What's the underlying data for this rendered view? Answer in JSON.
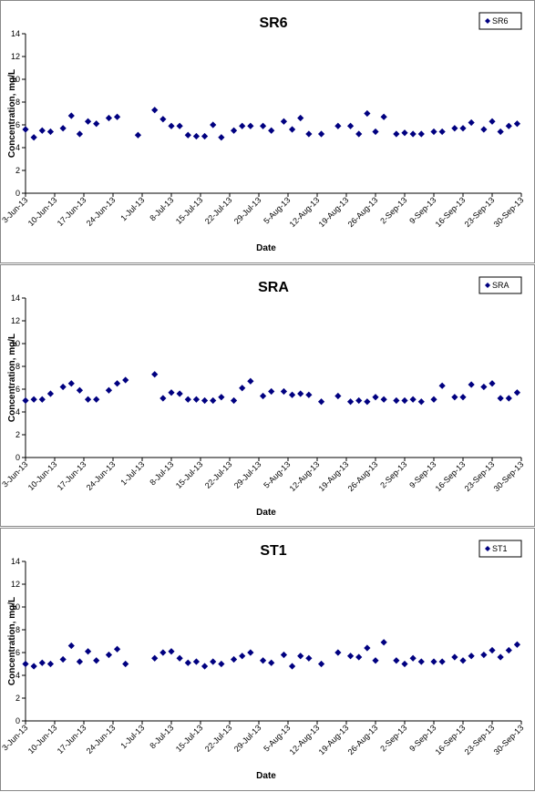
{
  "chart_data": [
    {
      "type": "scatter",
      "title": "SR6",
      "xlabel": "Date",
      "ylabel": "Concentration, mg/L",
      "legend": "upper right",
      "x": [
        "2013-06-03",
        "2013-06-05",
        "2013-06-07",
        "2013-06-09",
        "2013-06-12",
        "2013-06-14",
        "2013-06-16",
        "2013-06-18",
        "2013-06-20",
        "2013-06-23",
        "2013-06-25",
        "2013-06-30",
        "2013-07-04",
        "2013-07-06",
        "2013-07-08",
        "2013-07-10",
        "2013-07-12",
        "2013-07-14",
        "2013-07-16",
        "2013-07-18",
        "2013-07-20",
        "2013-07-23",
        "2013-07-25",
        "2013-07-27",
        "2013-07-30",
        "2013-08-01",
        "2013-08-04",
        "2013-08-06",
        "2013-08-08",
        "2013-08-10",
        "2013-08-13",
        "2013-08-17",
        "2013-08-20",
        "2013-08-22",
        "2013-08-24",
        "2013-08-26",
        "2013-08-28",
        "2013-08-31",
        "2013-09-02",
        "2013-09-04",
        "2013-09-06",
        "2013-09-09",
        "2013-09-11",
        "2013-09-14",
        "2013-09-16",
        "2013-09-18",
        "2013-09-21",
        "2013-09-23",
        "2013-09-25",
        "2013-09-27",
        "2013-09-29"
      ],
      "series": [
        {
          "name": "SR6",
          "color": "#000080",
          "values": [
            5.6,
            4.9,
            5.5,
            5.4,
            5.7,
            6.8,
            5.2,
            6.3,
            6.1,
            6.6,
            6.7,
            5.1,
            7.3,
            6.5,
            5.9,
            5.9,
            5.1,
            5.0,
            5.0,
            6.0,
            4.9,
            5.5,
            5.9,
            5.9,
            5.9,
            5.5,
            6.3,
            5.6,
            6.6,
            5.2,
            5.2,
            5.9,
            5.9,
            5.2,
            7.0,
            5.4,
            6.7,
            5.2,
            5.3,
            5.2,
            5.2,
            5.4,
            5.4,
            5.7,
            5.7,
            6.2,
            5.6,
            6.3,
            5.4,
            5.9,
            6.1
          ]
        }
      ],
      "xlim": [
        "2013-06-03",
        "2013-09-30"
      ],
      "xticks": [
        {
          "value": "2013-06-03",
          "label": "3-Jun-13"
        },
        {
          "value": "2013-06-10",
          "label": "10-Jun-13"
        },
        {
          "value": "2013-06-17",
          "label": "17-Jun-13"
        },
        {
          "value": "2013-06-24",
          "label": "24-Jun-13"
        },
        {
          "value": "2013-07-01",
          "label": "1-Jul-13"
        },
        {
          "value": "2013-07-08",
          "label": "8-Jul-13"
        },
        {
          "value": "2013-07-15",
          "label": "15-Jul-13"
        },
        {
          "value": "2013-07-22",
          "label": "22-Jul-13"
        },
        {
          "value": "2013-07-29",
          "label": "29-Jul-13"
        },
        {
          "value": "2013-08-05",
          "label": "5-Aug-13"
        },
        {
          "value": "2013-08-12",
          "label": "12-Aug-13"
        },
        {
          "value": "2013-08-19",
          "label": "19-Aug-13"
        },
        {
          "value": "2013-08-26",
          "label": "26-Aug-13"
        },
        {
          "value": "2013-09-02",
          "label": "2-Sep-13"
        },
        {
          "value": "2013-09-09",
          "label": "9-Sep-13"
        },
        {
          "value": "2013-09-16",
          "label": "16-Sep-13"
        },
        {
          "value": "2013-09-23",
          "label": "23-Sep-13"
        },
        {
          "value": "2013-09-30",
          "label": "30-Sep-13"
        }
      ],
      "ylim": [
        0,
        14
      ],
      "yticks": [
        0,
        2,
        4,
        6,
        8,
        10,
        12,
        14
      ]
    },
    {
      "type": "scatter",
      "title": "SRA",
      "xlabel": "Date",
      "ylabel": "Concentration, mg/L",
      "legend": "upper right",
      "x": [
        "2013-06-03",
        "2013-06-05",
        "2013-06-07",
        "2013-06-09",
        "2013-06-12",
        "2013-06-14",
        "2013-06-16",
        "2013-06-18",
        "2013-06-20",
        "2013-06-23",
        "2013-06-25",
        "2013-06-27",
        "2013-07-04",
        "2013-07-06",
        "2013-07-08",
        "2013-07-10",
        "2013-07-12",
        "2013-07-14",
        "2013-07-16",
        "2013-07-18",
        "2013-07-20",
        "2013-07-23",
        "2013-07-25",
        "2013-07-27",
        "2013-07-30",
        "2013-08-01",
        "2013-08-04",
        "2013-08-06",
        "2013-08-08",
        "2013-08-10",
        "2013-08-13",
        "2013-08-17",
        "2013-08-20",
        "2013-08-22",
        "2013-08-24",
        "2013-08-26",
        "2013-08-28",
        "2013-08-31",
        "2013-09-02",
        "2013-09-04",
        "2013-09-06",
        "2013-09-09",
        "2013-09-11",
        "2013-09-14",
        "2013-09-16",
        "2013-09-18",
        "2013-09-21",
        "2013-09-23",
        "2013-09-25",
        "2013-09-27",
        "2013-09-29"
      ],
      "series": [
        {
          "name": "SRA",
          "color": "#000080",
          "values": [
            5.0,
            5.1,
            5.1,
            5.6,
            6.2,
            6.5,
            5.9,
            5.1,
            5.1,
            5.9,
            6.5,
            6.8,
            7.3,
            5.2,
            5.7,
            5.6,
            5.1,
            5.1,
            5.0,
            5.0,
            5.3,
            5.0,
            6.1,
            6.7,
            5.4,
            5.8,
            5.8,
            5.5,
            5.6,
            5.5,
            4.9,
            5.4,
            4.9,
            5.0,
            4.9,
            5.3,
            5.1,
            5.0,
            5.0,
            5.1,
            4.9,
            5.1,
            6.3,
            5.3,
            5.3,
            6.4,
            6.2,
            6.5,
            5.2,
            5.2,
            5.7
          ]
        }
      ],
      "xlim": [
        "2013-06-03",
        "2013-09-30"
      ],
      "xticks": [
        {
          "value": "2013-06-03",
          "label": "3-Jun-13"
        },
        {
          "value": "2013-06-10",
          "label": "10-Jun-13"
        },
        {
          "value": "2013-06-17",
          "label": "17-Jun-13"
        },
        {
          "value": "2013-06-24",
          "label": "24-Jun-13"
        },
        {
          "value": "2013-07-01",
          "label": "1-Jul-13"
        },
        {
          "value": "2013-07-08",
          "label": "8-Jul-13"
        },
        {
          "value": "2013-07-15",
          "label": "15-Jul-13"
        },
        {
          "value": "2013-07-22",
          "label": "22-Jul-13"
        },
        {
          "value": "2013-07-29",
          "label": "29-Jul-13"
        },
        {
          "value": "2013-08-05",
          "label": "5-Aug-13"
        },
        {
          "value": "2013-08-12",
          "label": "12-Aug-13"
        },
        {
          "value": "2013-08-19",
          "label": "19-Aug-13"
        },
        {
          "value": "2013-08-26",
          "label": "26-Aug-13"
        },
        {
          "value": "2013-09-02",
          "label": "2-Sep-13"
        },
        {
          "value": "2013-09-09",
          "label": "9-Sep-13"
        },
        {
          "value": "2013-09-16",
          "label": "16-Sep-13"
        },
        {
          "value": "2013-09-23",
          "label": "23-Sep-13"
        },
        {
          "value": "2013-09-30",
          "label": "30-Sep-13"
        }
      ],
      "ylim": [
        0,
        14
      ],
      "yticks": [
        0,
        2,
        4,
        6,
        8,
        10,
        12,
        14
      ]
    },
    {
      "type": "scatter",
      "title": "ST1",
      "xlabel": "Date",
      "ylabel": "Concentration, mg/L",
      "legend": "upper right",
      "x": [
        "2013-06-03",
        "2013-06-05",
        "2013-06-07",
        "2013-06-09",
        "2013-06-12",
        "2013-06-14",
        "2013-06-16",
        "2013-06-18",
        "2013-06-20",
        "2013-06-23",
        "2013-06-25",
        "2013-06-27",
        "2013-07-04",
        "2013-07-06",
        "2013-07-08",
        "2013-07-10",
        "2013-07-12",
        "2013-07-14",
        "2013-07-16",
        "2013-07-18",
        "2013-07-20",
        "2013-07-23",
        "2013-07-25",
        "2013-07-27",
        "2013-07-30",
        "2013-08-01",
        "2013-08-04",
        "2013-08-06",
        "2013-08-08",
        "2013-08-10",
        "2013-08-13",
        "2013-08-17",
        "2013-08-20",
        "2013-08-22",
        "2013-08-24",
        "2013-08-26",
        "2013-08-28",
        "2013-08-31",
        "2013-09-02",
        "2013-09-04",
        "2013-09-06",
        "2013-09-09",
        "2013-09-11",
        "2013-09-14",
        "2013-09-16",
        "2013-09-18",
        "2013-09-21",
        "2013-09-23",
        "2013-09-25",
        "2013-09-27",
        "2013-09-29"
      ],
      "series": [
        {
          "name": "ST1",
          "color": "#000080",
          "values": [
            5.0,
            4.8,
            5.1,
            5.0,
            5.4,
            6.6,
            5.2,
            6.1,
            5.3,
            5.8,
            6.3,
            5.0,
            5.5,
            6.0,
            6.1,
            5.5,
            5.1,
            5.2,
            4.8,
            5.2,
            5.0,
            5.4,
            5.7,
            6.0,
            5.3,
            5.1,
            5.8,
            4.8,
            5.7,
            5.5,
            5.0,
            6.0,
            5.7,
            5.6,
            6.4,
            5.3,
            6.9,
            5.3,
            5.0,
            5.5,
            5.2,
            5.2,
            5.2,
            5.6,
            5.3,
            5.7,
            5.8,
            6.2,
            5.6,
            6.2,
            6.7
          ]
        }
      ],
      "xlim": [
        "2013-06-03",
        "2013-09-30"
      ],
      "xticks": [
        {
          "value": "2013-06-03",
          "label": "3-Jun-13"
        },
        {
          "value": "2013-06-10",
          "label": "10-Jun-13"
        },
        {
          "value": "2013-06-17",
          "label": "17-Jun-13"
        },
        {
          "value": "2013-06-24",
          "label": "24-Jun-13"
        },
        {
          "value": "2013-07-01",
          "label": "1-Jul-13"
        },
        {
          "value": "2013-07-08",
          "label": "8-Jul-13"
        },
        {
          "value": "2013-07-15",
          "label": "15-Jul-13"
        },
        {
          "value": "2013-07-22",
          "label": "22-Jul-13"
        },
        {
          "value": "2013-07-29",
          "label": "29-Jul-13"
        },
        {
          "value": "2013-08-05",
          "label": "5-Aug-13"
        },
        {
          "value": "2013-08-12",
          "label": "12-Aug-13"
        },
        {
          "value": "2013-08-19",
          "label": "19-Aug-13"
        },
        {
          "value": "2013-08-26",
          "label": "26-Aug-13"
        },
        {
          "value": "2013-09-02",
          "label": "2-Sep-13"
        },
        {
          "value": "2013-09-09",
          "label": "9-Sep-13"
        },
        {
          "value": "2013-09-16",
          "label": "16-Sep-13"
        },
        {
          "value": "2013-09-23",
          "label": "23-Sep-13"
        },
        {
          "value": "2013-09-30",
          "label": "30-Sep-13"
        }
      ],
      "ylim": [
        0,
        14
      ],
      "yticks": [
        0,
        2,
        4,
        6,
        8,
        10,
        12,
        14
      ]
    }
  ]
}
